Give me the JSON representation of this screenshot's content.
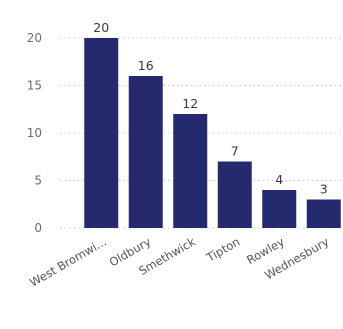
{
  "chart_data": {
    "type": "bar",
    "categories": [
      "West Bromwi...",
      "Oldbury",
      "Smethwick",
      "Tipton",
      "Rowley",
      "Wednesbury"
    ],
    "values": [
      20,
      16,
      12,
      7,
      4,
      3
    ],
    "ylim": [
      0,
      20
    ],
    "yticks": [
      "0",
      "5",
      "10",
      "15",
      "20"
    ],
    "grid": true,
    "data_labels": true,
    "bar_color": "#252a6e",
    "title": "",
    "xlabel": "",
    "ylabel": ""
  }
}
